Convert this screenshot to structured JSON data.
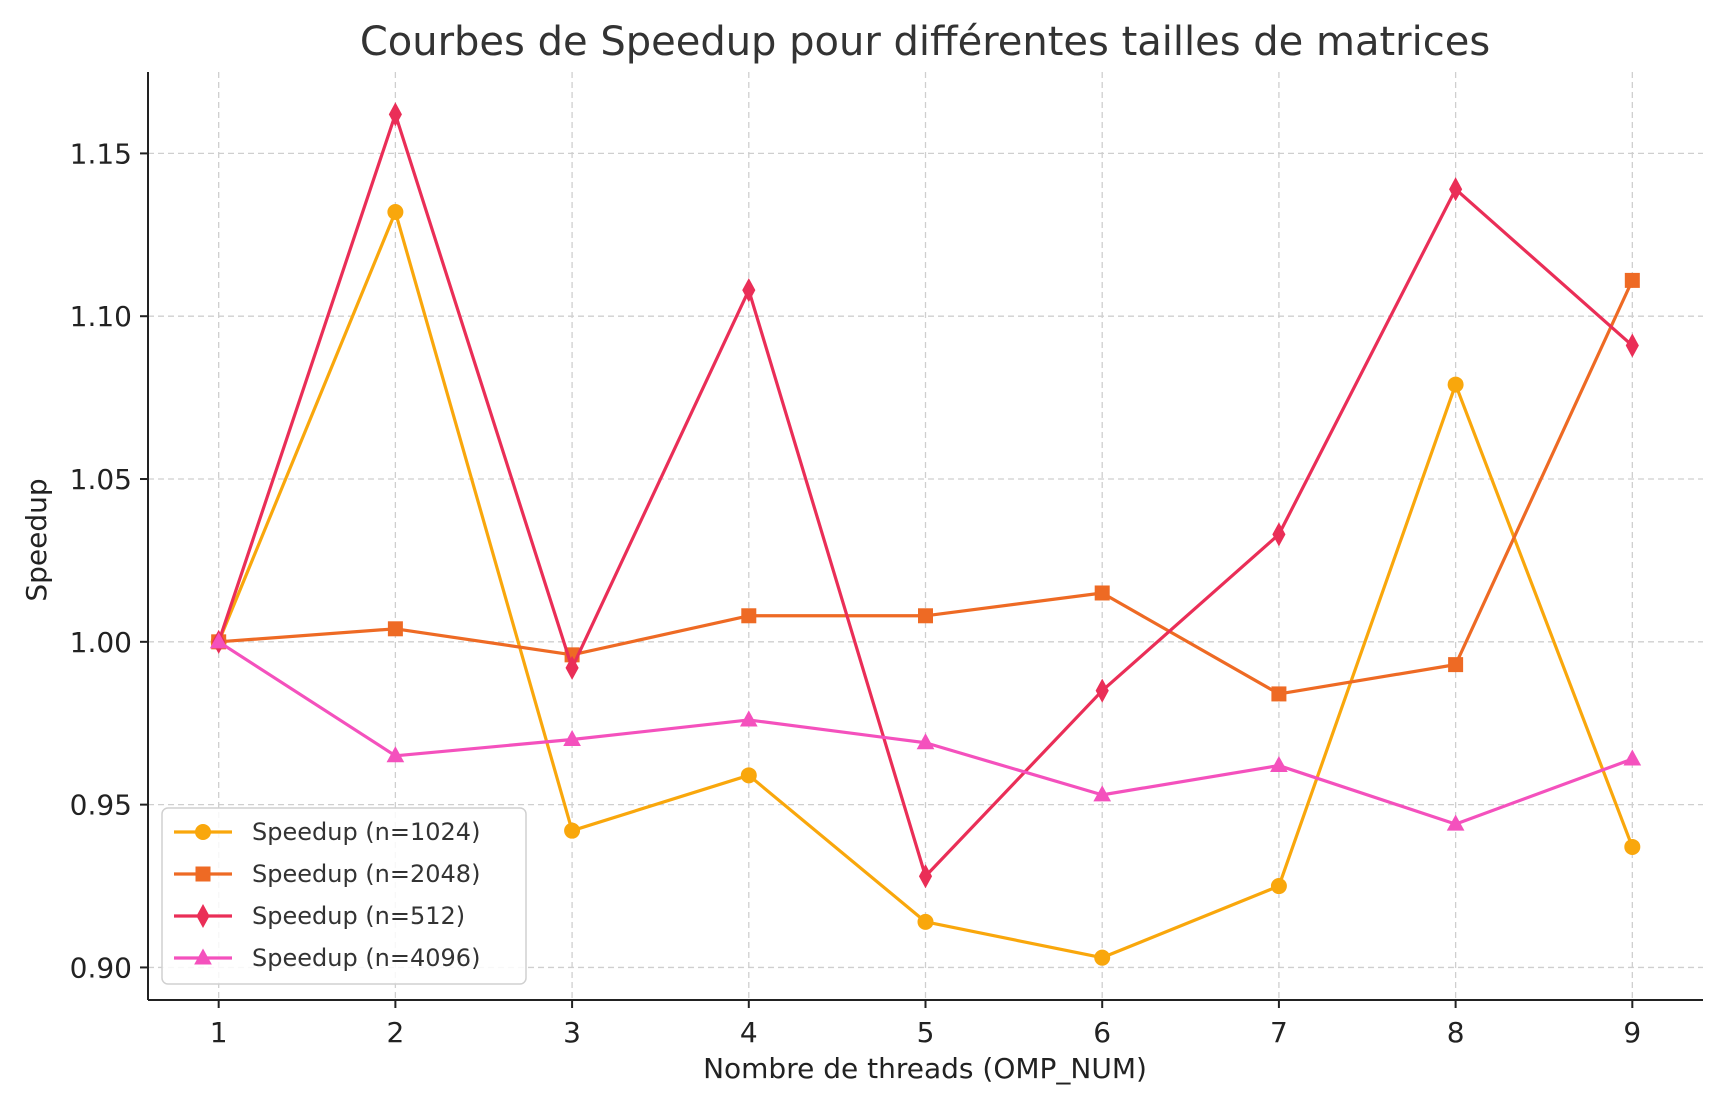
{
  "chart_data": {
    "type": "line",
    "title": "Courbes de Speedup pour différentes tailles de matrices",
    "xlabel": "Nombre de threads (OMP_NUM)",
    "ylabel": "Speedup",
    "x": [
      1,
      2,
      3,
      4,
      5,
      6,
      7,
      8,
      9
    ],
    "xlim": [
      0.6,
      9.4
    ],
    "ylim": [
      0.89,
      1.175
    ],
    "xticks": [
      "1",
      "2",
      "3",
      "4",
      "5",
      "6",
      "7",
      "8",
      "9"
    ],
    "yticks": [
      0.9,
      0.95,
      1.0,
      1.05,
      1.1,
      1.15
    ],
    "ytick_labels": [
      "0.90",
      "0.95",
      "1.00",
      "1.05",
      "1.10",
      "1.15"
    ],
    "grid": true,
    "legend_position": "bottom-left",
    "series": [
      {
        "name": "Speedup (n=1024)",
        "color": "#f9a70c",
        "marker": "circle",
        "values": [
          1.0,
          1.132,
          0.942,
          0.959,
          0.914,
          0.903,
          0.925,
          1.079,
          0.937
        ]
      },
      {
        "name": "Speedup (n=2048)",
        "color": "#ee6a24",
        "marker": "square",
        "values": [
          1.0,
          1.004,
          0.996,
          1.008,
          1.008,
          1.015,
          0.984,
          0.993,
          1.111
        ]
      },
      {
        "name": "Speedup (n=512)",
        "color": "#ea2e57",
        "marker": "diamond",
        "values": [
          1.0,
          1.162,
          0.992,
          1.108,
          0.928,
          0.985,
          1.033,
          1.139,
          1.091
        ]
      },
      {
        "name": "Speedup (n=4096)",
        "color": "#f451bd",
        "marker": "triangle",
        "values": [
          1.0,
          0.965,
          0.97,
          0.976,
          0.969,
          0.953,
          0.962,
          0.944,
          0.964
        ]
      }
    ]
  }
}
